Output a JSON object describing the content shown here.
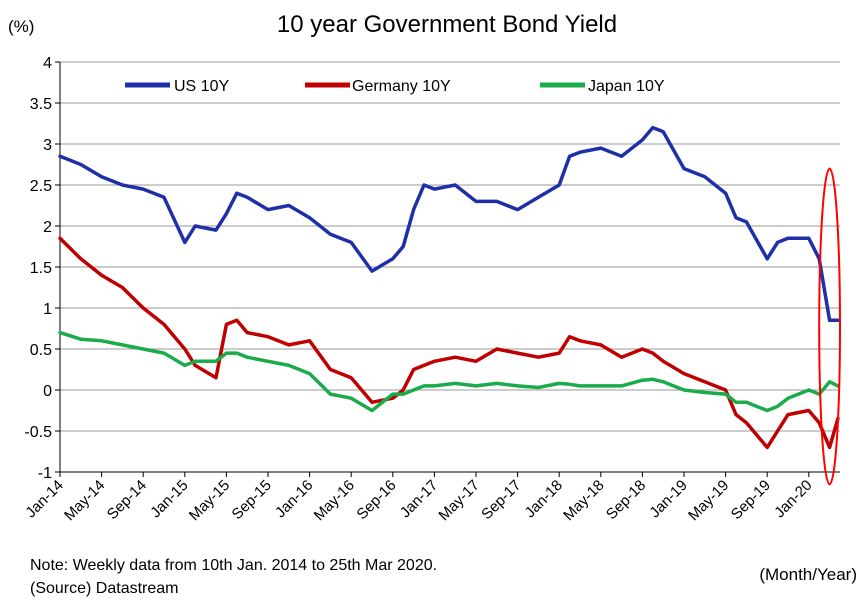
{
  "chart_data": {
    "type": "line",
    "title": "10 year Government Bond Yield",
    "ylabel": "(%)",
    "xlabel": "(Month/Year)",
    "note": "Note: Weekly data from 10th Jan. 2014 to 25th Mar 2020.",
    "source": "(Source) Datastream",
    "ylim": [
      -1,
      4
    ],
    "yticks": [
      "4",
      "3.5",
      "3",
      "2.5",
      "2",
      "1.5",
      "1",
      "0.5",
      "0",
      "-0.5",
      "-1"
    ],
    "ytick_values": [
      4,
      3.5,
      3,
      2.5,
      2,
      1.5,
      1,
      0.5,
      0,
      -0.5,
      -1
    ],
    "x_range": [
      "2014-01",
      "2020-04"
    ],
    "xticks": [
      "Jan-14",
      "May-14",
      "Sep-14",
      "Jan-15",
      "May-15",
      "Sep-15",
      "Jan-16",
      "May-16",
      "Sep-16",
      "Jan-17",
      "May-17",
      "Sep-17",
      "Jan-18",
      "May-18",
      "Sep-18",
      "Jan-19",
      "May-19",
      "Sep-19",
      "Jan-20"
    ],
    "grid": "horizontal",
    "legend_position": "top",
    "x": [
      "2014-01",
      "2014-03",
      "2014-05",
      "2014-07",
      "2014-09",
      "2014-11",
      "2015-01",
      "2015-02",
      "2015-04",
      "2015-05",
      "2015-06",
      "2015-07",
      "2015-09",
      "2015-11",
      "2016-01",
      "2016-03",
      "2016-05",
      "2016-07",
      "2016-09",
      "2016-10",
      "2016-11",
      "2016-12",
      "2017-01",
      "2017-03",
      "2017-05",
      "2017-07",
      "2017-09",
      "2017-11",
      "2018-01",
      "2018-02",
      "2018-03",
      "2018-05",
      "2018-07",
      "2018-09",
      "2018-10",
      "2018-11",
      "2019-01",
      "2019-03",
      "2019-05",
      "2019-06",
      "2019-07",
      "2019-09",
      "2019-10",
      "2019-11",
      "2020-01",
      "2020-02",
      "2020-03",
      "2020-03-25"
    ],
    "series": [
      {
        "name": "US 10Y",
        "color": "#1f2fa8",
        "values": [
          2.85,
          2.75,
          2.6,
          2.5,
          2.45,
          2.35,
          1.8,
          2.0,
          1.95,
          2.15,
          2.4,
          2.35,
          2.2,
          2.25,
          2.1,
          1.9,
          1.8,
          1.45,
          1.6,
          1.75,
          2.2,
          2.5,
          2.45,
          2.5,
          2.3,
          2.3,
          2.2,
          2.35,
          2.5,
          2.85,
          2.9,
          2.95,
          2.85,
          3.05,
          3.2,
          3.15,
          2.7,
          2.6,
          2.4,
          2.1,
          2.05,
          1.6,
          1.8,
          1.85,
          1.85,
          1.6,
          0.85,
          0.85
        ]
      },
      {
        "name": "Germany 10Y",
        "color": "#c00000",
        "values": [
          1.85,
          1.6,
          1.4,
          1.25,
          1.0,
          0.8,
          0.5,
          0.3,
          0.15,
          0.8,
          0.85,
          0.7,
          0.65,
          0.55,
          0.6,
          0.25,
          0.15,
          -0.15,
          -0.1,
          0.0,
          0.25,
          0.3,
          0.35,
          0.4,
          0.35,
          0.5,
          0.45,
          0.4,
          0.45,
          0.65,
          0.6,
          0.55,
          0.4,
          0.5,
          0.45,
          0.35,
          0.2,
          0.1,
          0.0,
          -0.3,
          -0.4,
          -0.7,
          -0.5,
          -0.3,
          -0.25,
          -0.4,
          -0.7,
          -0.35
        ]
      },
      {
        "name": "Japan 10Y",
        "color": "#1aab4a",
        "values": [
          0.7,
          0.62,
          0.6,
          0.55,
          0.5,
          0.45,
          0.3,
          0.35,
          0.35,
          0.45,
          0.45,
          0.4,
          0.35,
          0.3,
          0.2,
          -0.05,
          -0.1,
          -0.25,
          -0.05,
          -0.05,
          0.0,
          0.05,
          0.05,
          0.08,
          0.05,
          0.08,
          0.05,
          0.03,
          0.08,
          0.07,
          0.05,
          0.05,
          0.05,
          0.12,
          0.13,
          0.1,
          0.0,
          -0.03,
          -0.05,
          -0.15,
          -0.15,
          -0.25,
          -0.2,
          -0.1,
          0.0,
          -0.05,
          0.1,
          0.05
        ]
      }
    ],
    "annotation": {
      "shape": "ellipse",
      "color": "#ff0000",
      "x_from": "2020-02",
      "x_to": "2020-04",
      "y_from": -1.15,
      "y_to": 2.7
    }
  }
}
